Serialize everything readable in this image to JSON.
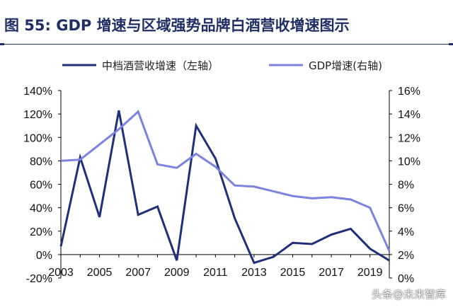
{
  "title": "图 55: GDP 增速与区域强势品牌白酒营收增速图示",
  "watermark": "头条@未来智库",
  "chart_data": {
    "type": "line",
    "title": "",
    "x": [
      2003,
      2004,
      2005,
      2006,
      2007,
      2008,
      2009,
      2010,
      2011,
      2012,
      2013,
      2014,
      2015,
      2016,
      2017,
      2018,
      2019,
      2020
    ],
    "x_tick_labels": [
      "2003",
      "2005",
      "2007",
      "2009",
      "2011",
      "2013",
      "2015",
      "2017",
      "2019"
    ],
    "x_ticks": [
      2003,
      2005,
      2007,
      2009,
      2011,
      2013,
      2015,
      2017,
      2019
    ],
    "y_left": {
      "min": -20,
      "max": 140,
      "step": 20,
      "tick_labels": [
        "-20%",
        "0%",
        "20%",
        "40%",
        "60%",
        "80%",
        "100%",
        "120%",
        "140%"
      ]
    },
    "y_right": {
      "min": 0,
      "max": 16,
      "step": 2,
      "tick_labels": [
        "0%",
        "2%",
        "4%",
        "6%",
        "8%",
        "10%",
        "12%",
        "14%",
        "16%"
      ]
    },
    "legend_position": "top",
    "grid": false,
    "series": [
      {
        "name": "中档酒营收增速（左轴）",
        "axis": "left",
        "color": "#1f2f7a",
        "values": [
          7,
          83,
          32,
          123,
          34,
          41,
          -5,
          110,
          82,
          31,
          -7,
          -2,
          10,
          9,
          17,
          22,
          5,
          -5
        ]
      },
      {
        "name": "GDP增速(右轴)",
        "axis": "right",
        "color": "#7b82e0",
        "values": [
          10.0,
          10.1,
          11.4,
          12.7,
          14.2,
          9.7,
          9.4,
          10.6,
          9.5,
          7.9,
          7.8,
          7.4,
          7.0,
          6.8,
          6.9,
          6.7,
          6.0,
          2.3
        ]
      }
    ]
  }
}
